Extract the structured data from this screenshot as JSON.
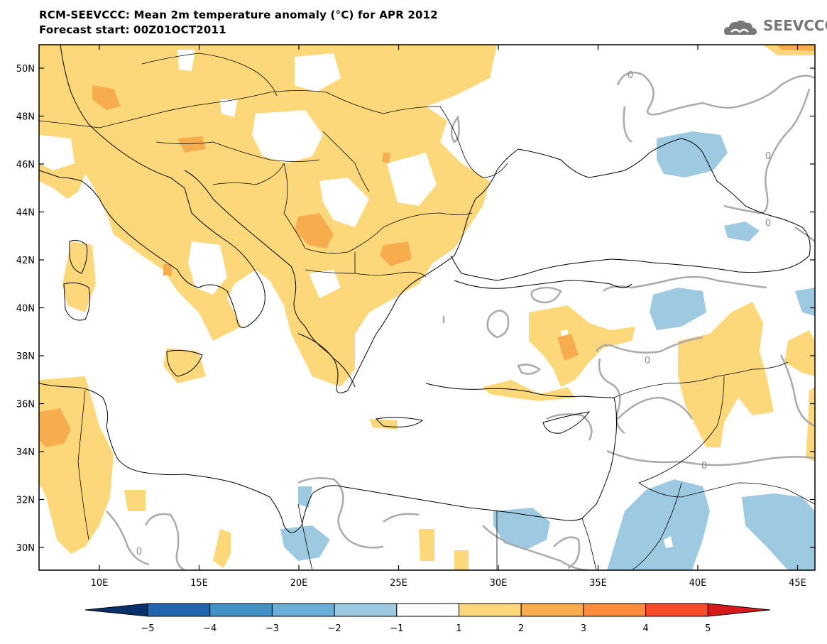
{
  "header": {
    "title_line1": "RCM-SEEVCCC: Mean 2m temperature anomaly (°C) for APR 2012",
    "title_line2": "Forecast start: 00Z01OCT2011",
    "logo_text": "SEEVCCC"
  },
  "map": {
    "lat_labels": [
      "50N",
      "48N",
      "46N",
      "44N",
      "42N",
      "40N",
      "38N",
      "36N",
      "34N",
      "32N",
      "30N"
    ],
    "lon_labels": [
      "10E",
      "15E",
      "20E",
      "25E",
      "30E",
      "35E",
      "40E",
      "45E"
    ],
    "contour_label": "0",
    "colors": {
      "warm1": "#fdd87a",
      "warm2": "#f7ac4e",
      "cool1": "#9ecae1",
      "contour": "#aaaaaa",
      "coast": "#000000"
    }
  },
  "colorbar": {
    "labels": [
      "−5",
      "−4",
      "−3",
      "−2",
      "−1",
      "1",
      "2",
      "3",
      "4",
      "5"
    ],
    "colors": [
      "#08306b",
      "#2166ac",
      "#4292c6",
      "#6baed6",
      "#9ecae1",
      "#ffffff",
      "#fdd87a",
      "#f7ac4e",
      "#fd8d3c",
      "#f64a2a",
      "#d7191c"
    ]
  }
}
